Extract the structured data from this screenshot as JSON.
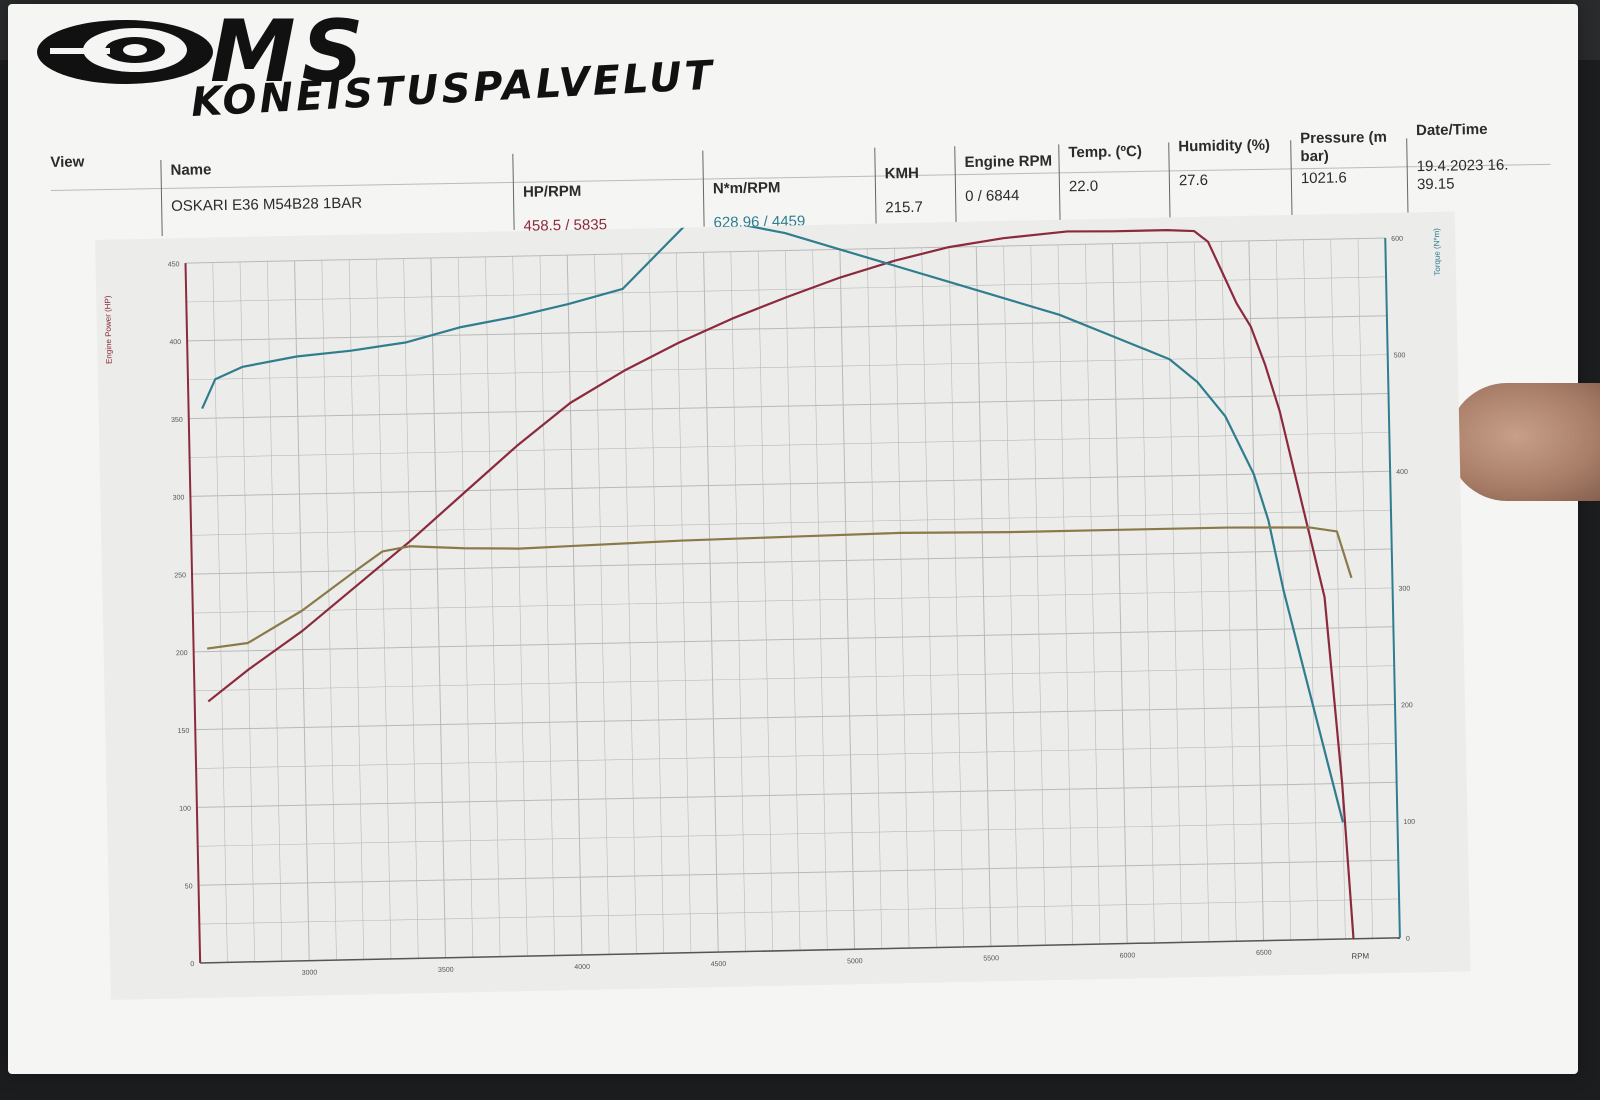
{
  "logo": {
    "brand": "MS",
    "subtitle": "KONEISTUSPALVELUT"
  },
  "info": {
    "view_label": "View",
    "name_header": "Name",
    "name_value": "OSKARI E36 M54B28 1BAR",
    "hp_header": "HP/RPM",
    "hp_value": "458.5 / 5835",
    "nm_header": "N*m/RPM",
    "nm_value": "628.96 / 4459",
    "kmh_header": "KMH",
    "kmh_value": "215.7",
    "rpm_header": "Engine RPM",
    "rpm_value": "0 / 6844",
    "temp_header": "Temp. (ºC)",
    "temp_value": "22.0",
    "hum_header": "Humidity (%)",
    "hum_value": "27.6",
    "press_header": "Pressure (m bar)",
    "press_value": "1021.6",
    "date_header": "Date/Time",
    "date_value": "19.4.2023 16. 39.15"
  },
  "colors": {
    "power": "#8b2a3c",
    "torque": "#2f7d8f",
    "third": "#8a7a4a",
    "grid": "#b9b9b9",
    "background": "#ececea"
  },
  "chart_data": {
    "type": "line",
    "xlabel": "RPM",
    "ylabel_left": "Engine Power (HP)",
    "ylabel_right": "Torque (N*m)",
    "xlim": [
      2600,
      7000
    ],
    "ylim_left": [
      0,
      450
    ],
    "ylim_right": [
      0,
      600
    ],
    "x_ticks": [
      3000,
      3500,
      4000,
      4500,
      5000,
      5500,
      6000,
      6500
    ],
    "y_ticks_left": [
      0,
      50,
      100,
      150,
      200,
      250,
      300,
      350,
      400,
      450
    ],
    "y_ticks_right": [
      0,
      100,
      200,
      300,
      400,
      500,
      600
    ],
    "grid": true,
    "series": [
      {
        "axis": "left",
        "color": "power",
        "x": [
          2650,
          2800,
          3000,
          3200,
          3400,
          3600,
          3800,
          4000,
          4200,
          4400,
          4600,
          4800,
          5000,
          5200,
          5400,
          5600,
          5835,
          6000,
          6200,
          6300,
          6350,
          6400,
          6450,
          6500,
          6550,
          6600,
          6650,
          6700,
          6750,
          6800,
          6830
        ],
        "y": [
          168,
          188,
          212,
          240,
          268,
          298,
          328,
          355,
          375,
          392,
          407,
          420,
          432,
          442,
          450,
          455,
          458.5,
          458,
          458,
          457,
          450,
          430,
          410,
          395,
          370,
          340,
          300,
          260,
          220,
          100,
          0
        ]
      },
      {
        "axis": "right",
        "color": "torque",
        "x": [
          2650,
          2700,
          2800,
          3000,
          3200,
          3400,
          3600,
          3800,
          4000,
          4200,
          4459,
          4600,
          4800,
          5000,
          5200,
          5400,
          5600,
          5800,
          6000,
          6200,
          6300,
          6400,
          6500,
          6550,
          6600,
          6650,
          6700,
          6750,
          6800
        ],
        "y": [
          475,
          500,
          510,
          518,
          522,
          528,
          540,
          548,
          558,
          570,
          628.96,
          625,
          615,
          600,
          585,
          570,
          555,
          540,
          520,
          500,
          480,
          450,
          400,
          360,
          300,
          250,
          200,
          150,
          100
        ]
      },
      {
        "axis": "left",
        "color": "third",
        "x": [
          2650,
          2800,
          3000,
          3200,
          3300,
          3400,
          3600,
          3800,
          4000,
          4400,
          4800,
          5200,
          5600,
          6000,
          6400,
          6700,
          6800,
          6850
        ],
        "y": [
          202,
          205,
          225,
          250,
          262,
          265,
          263,
          262,
          263,
          265,
          266,
          267,
          266,
          266,
          266,
          265,
          262,
          232
        ]
      }
    ]
  }
}
